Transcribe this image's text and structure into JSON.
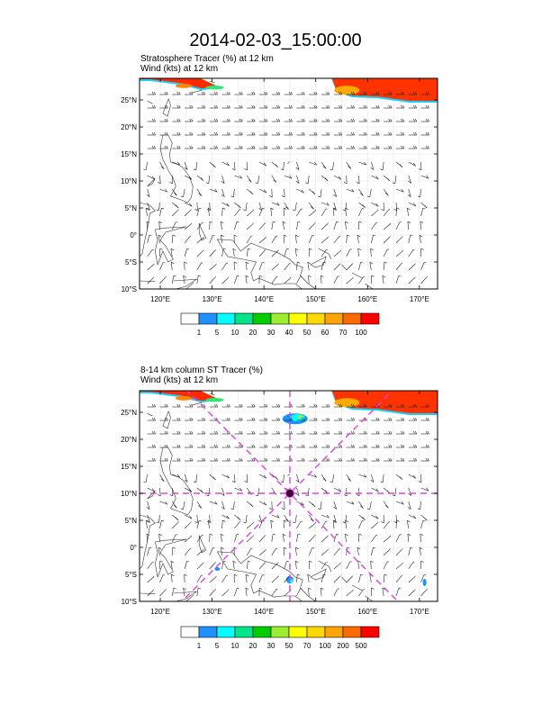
{
  "title": "2014-02-03_15:00:00",
  "lat_labels": [
    "25°N",
    "20°N",
    "15°N",
    "10°N",
    "5°N",
    "0°",
    "5°S",
    "10°S"
  ],
  "lon_labels": [
    "120°E",
    "130°E",
    "140°E",
    "150°E",
    "160°E",
    "170°E"
  ],
  "panel1": {
    "title_line1": "Stratosphere Tracer   (%)     at   12 km",
    "title_line2": "Wind    (kts)     at   12 km",
    "colorbar": {
      "labels": [
        "1",
        "5",
        "10",
        "20",
        "30",
        "40",
        "50",
        "60",
        "70",
        "100"
      ],
      "colors": [
        "#ffffff",
        "#1e90ff",
        "#00ffff",
        "#00e58c",
        "#00cd00",
        "#9aed2f",
        "#ffff00",
        "#ffd700",
        "#ffa500",
        "#ff6a00",
        "#ff0000"
      ]
    }
  },
  "panel2": {
    "title_line1": "8-14 km column ST Tracer   (%)",
    "title_line2": "Wind    (kts)     at   12 km",
    "colorbar": {
      "labels": [
        "1",
        "5",
        "10",
        "20",
        "30",
        "50",
        "70",
        "100",
        "200",
        "500"
      ],
      "colors": [
        "#ffffff",
        "#1e90ff",
        "#00ffff",
        "#00e58c",
        "#00cd00",
        "#9aed2f",
        "#ffff00",
        "#ffd700",
        "#ffa500",
        "#ff6a00",
        "#ff0000"
      ]
    },
    "marker_center": {
      "lon": 145,
      "lat": 10
    },
    "crosshair_color": "#e040e0"
  }
}
